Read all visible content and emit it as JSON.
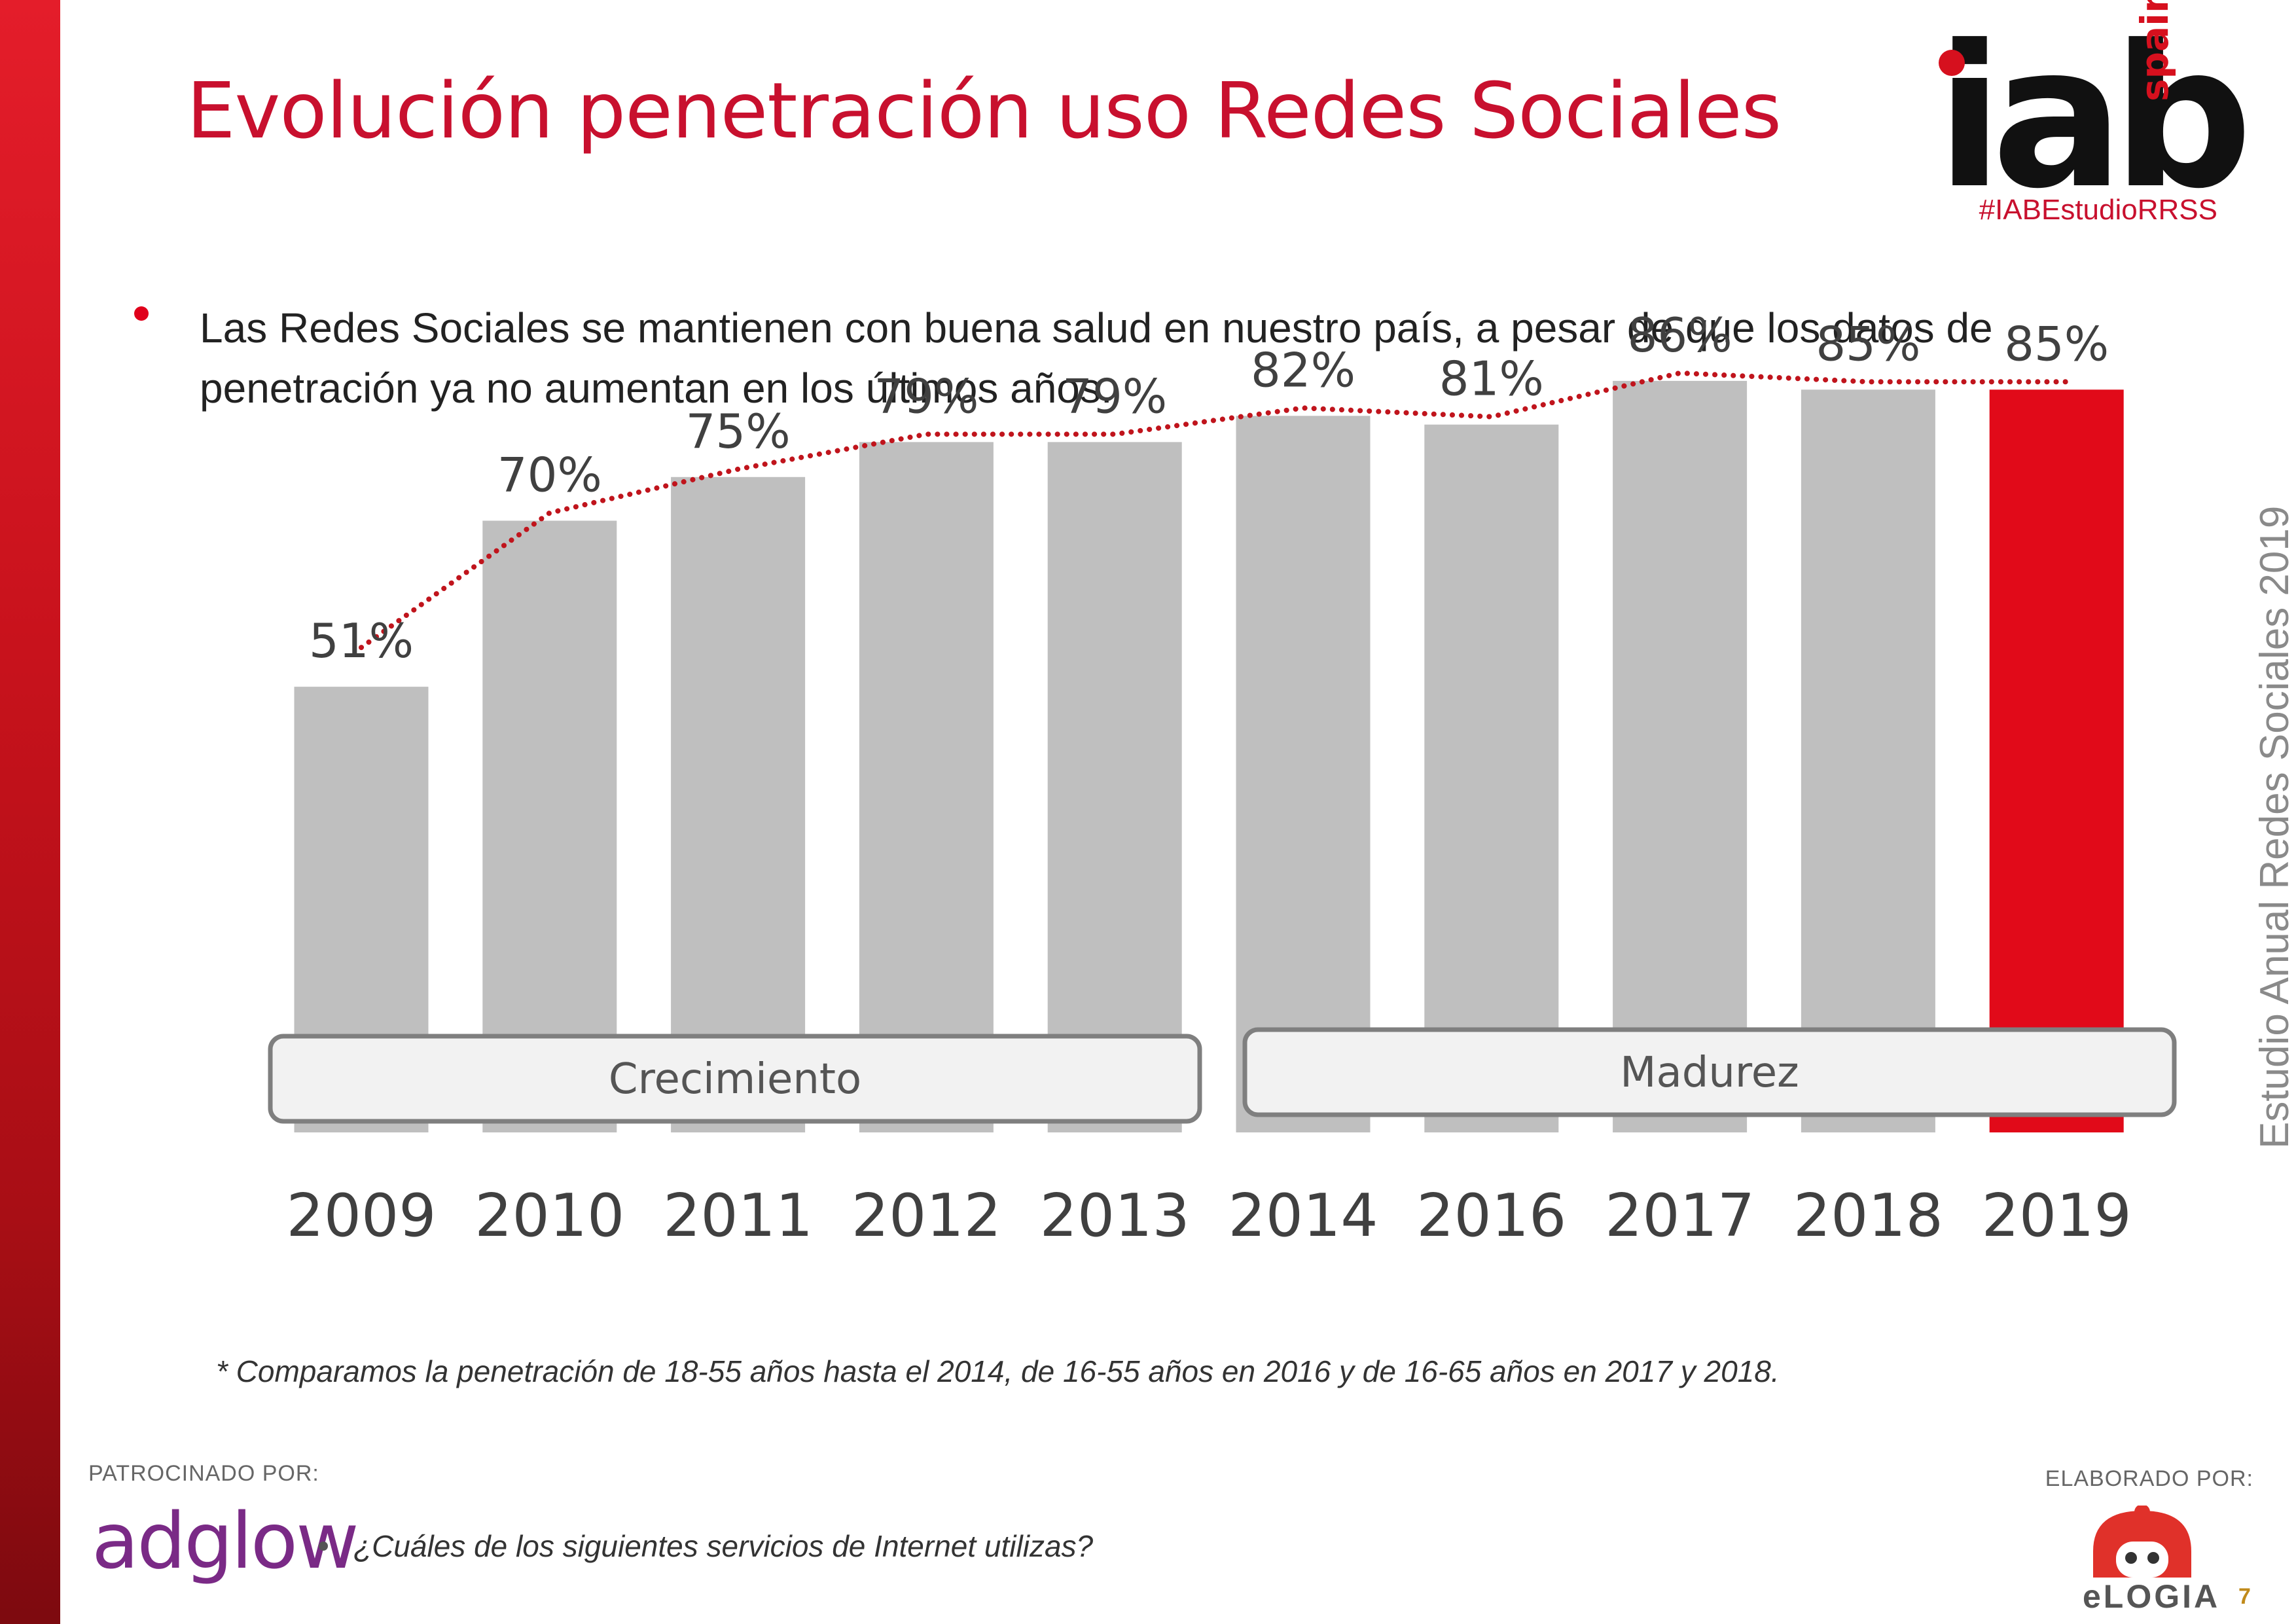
{
  "title": "Evolución penetración uso Redes Sociales",
  "logo": {
    "text": "iab",
    "sub": "spain"
  },
  "hashtag": "#IABEstudioRRSS",
  "bullet": "Las Redes Sociales se mantienen con buena salud en nuestro país, a pesar de que los datos de penetración ya no aumentan en los últimos años.",
  "vertical_title": "Estudio Anual Redes Sociales 2019",
  "phases": [
    "Crecimiento",
    "Madurez"
  ],
  "footnote": "* Comparamos la penetración de 18-55 años hasta el 2014, de 16-55 años en 2016 y de 16-65 años en 2017 y 2018.",
  "sponsor_label": "PATROCINADO POR:",
  "sponsor_name": "adglow",
  "question": "¿Cuáles de los siguientes servicios de Internet utilizas?",
  "made_by_label": "ELABORADO POR:",
  "made_by_name": "eLOGIA",
  "page_number": "7",
  "colors": {
    "bar": "#bfbfbf",
    "highlight": "#e10a19",
    "trend": "#c0141c",
    "title": "#c8102e"
  },
  "chart_data": {
    "type": "bar",
    "categories": [
      "2009",
      "2010",
      "2011",
      "2012",
      "2013",
      "2014",
      "2016",
      "2017",
      "2018",
      "2019"
    ],
    "values": [
      51,
      70,
      75,
      79,
      79,
      82,
      81,
      86,
      85,
      85
    ],
    "value_labels": [
      "51%",
      "70%",
      "75%",
      "79%",
      "79%",
      "82%",
      "81%",
      "86%",
      "85%",
      "85%"
    ],
    "highlight_category": "2019",
    "trendline": "dotted",
    "unit": "%",
    "ylim": [
      0,
      100
    ],
    "grid": false,
    "legend": "none"
  }
}
